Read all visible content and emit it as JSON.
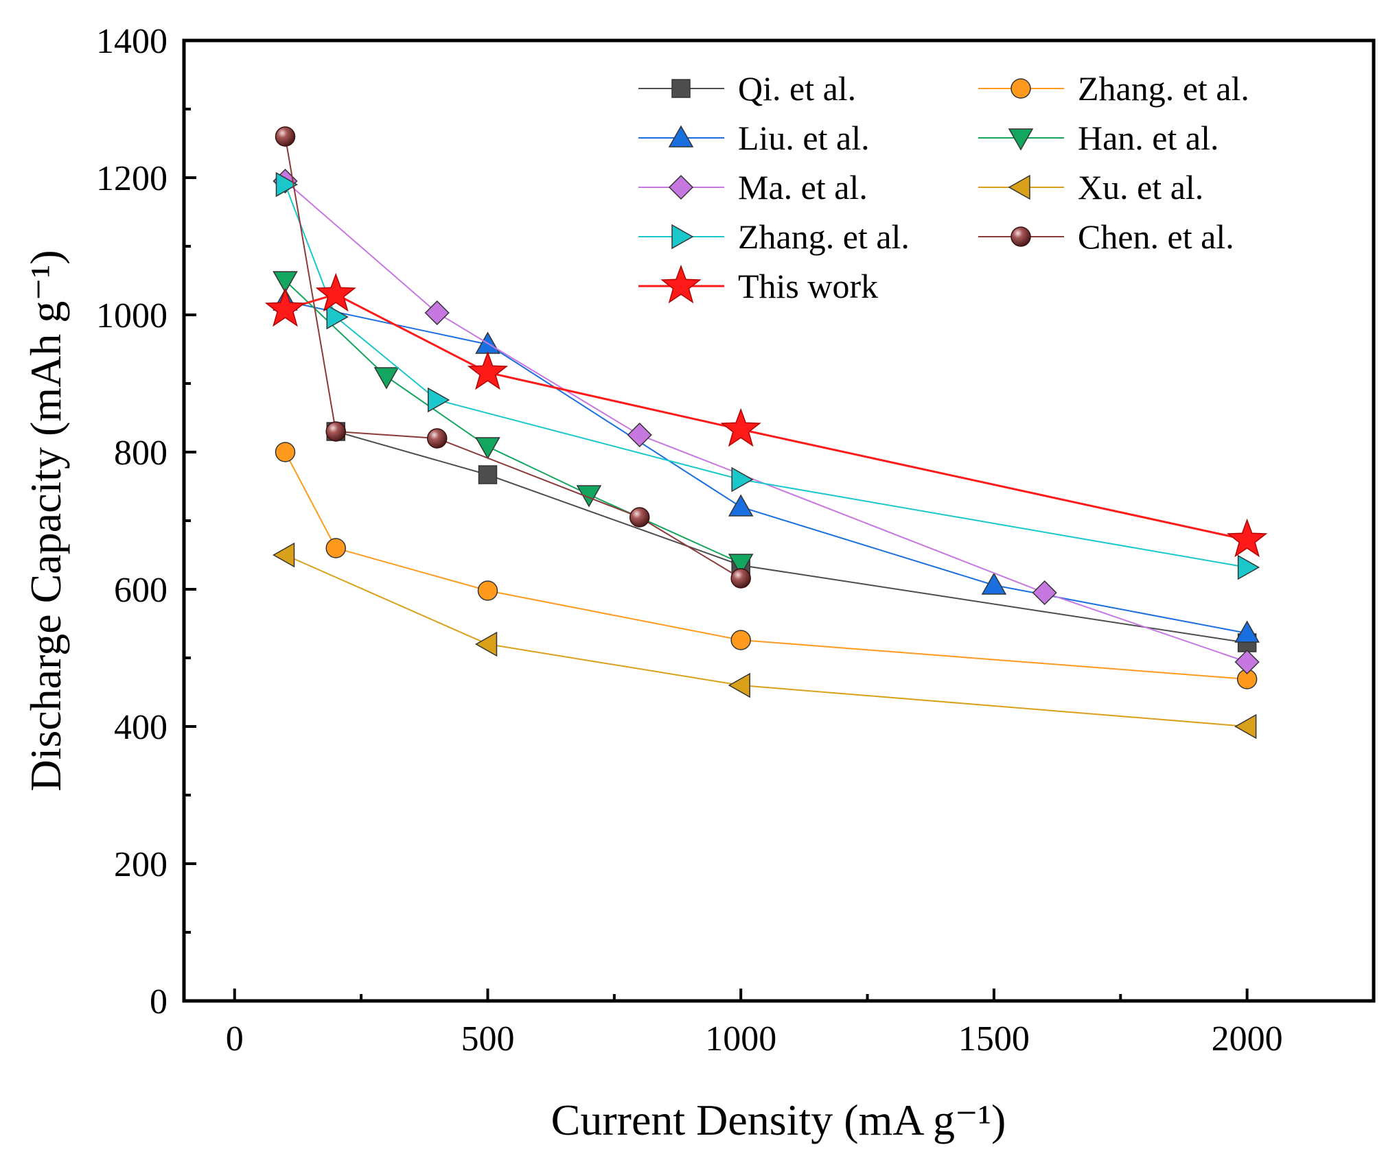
{
  "chart_data": {
    "type": "line",
    "xlabel": "Current Density (mA g⁻¹)",
    "ylabel": "Discharge Capacity (mAh g⁻¹)",
    "xlim": [
      -100,
      2250
    ],
    "ylim": [
      0,
      1400
    ],
    "xticks": [
      0,
      500,
      1000,
      1500,
      2000
    ],
    "yticks": [
      0,
      200,
      400,
      600,
      800,
      1000,
      1200,
      1400
    ],
    "grid": false,
    "legend_position": "top-right",
    "series": [
      {
        "name": "Qi. et al.",
        "color": "#4d4d4d",
        "marker": "square",
        "x": [
          200,
          500,
          1000,
          2000
        ],
        "y": [
          830,
          767,
          635,
          522
        ]
      },
      {
        "name": "Zhang. et al.",
        "color": "#ff9a1f",
        "marker": "circle",
        "x": [
          100,
          200,
          500,
          1000,
          2000
        ],
        "y": [
          800,
          660,
          598,
          526,
          469
        ]
      },
      {
        "name": "Liu. et al.",
        "color": "#1a6fe0",
        "marker": "triangle-up",
        "x": [
          100,
          500,
          1000,
          1500,
          2000
        ],
        "y": [
          1020,
          957,
          720,
          606,
          536
        ]
      },
      {
        "name": "Han. et al.",
        "color": "#12a65e",
        "marker": "triangle-down",
        "x": [
          100,
          300,
          500,
          700,
          1000
        ],
        "y": [
          1050,
          910,
          808,
          738,
          638
        ]
      },
      {
        "name": "Ma. et al.",
        "color": "#c777e0",
        "marker": "diamond",
        "x": [
          100,
          400,
          800,
          1600,
          2000
        ],
        "y": [
          1195,
          1003,
          825,
          595,
          494
        ]
      },
      {
        "name": "Xu. et al.",
        "color": "#d9a11a",
        "marker": "triangle-left",
        "x": [
          100,
          500,
          1000,
          2000
        ],
        "y": [
          650,
          520,
          460,
          400
        ]
      },
      {
        "name": "Zhang. et al.",
        "color": "#1ac8cc",
        "marker": "triangle-right",
        "x": [
          100,
          200,
          400,
          1000,
          2000
        ],
        "y": [
          1190,
          997,
          876,
          760,
          632
        ]
      },
      {
        "name": "Chen. et al.",
        "color": "#8a3a3a",
        "marker": "sphere",
        "x": [
          100,
          200,
          400,
          800,
          1000
        ],
        "y": [
          1260,
          830,
          820,
          705,
          616
        ]
      },
      {
        "name": "This work",
        "color": "#ff1a1a",
        "marker": "star",
        "x": [
          100,
          200,
          500,
          1000,
          2000
        ],
        "y": [
          1008,
          1030,
          916,
          833,
          672
        ]
      }
    ]
  }
}
